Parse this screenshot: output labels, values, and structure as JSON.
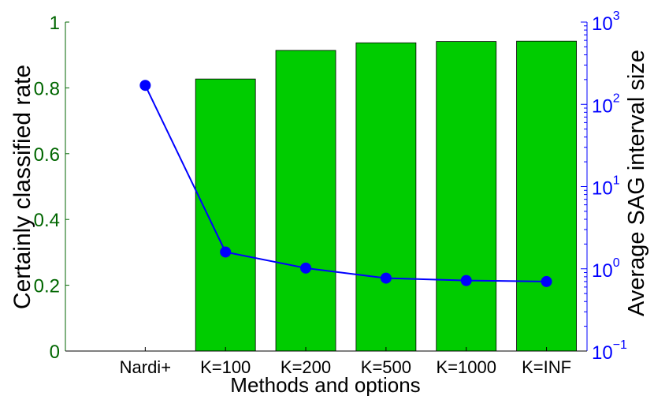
{
  "chart_data": {
    "type": "bar",
    "xlabel": "Methods and options",
    "ylabel": "Certainly classified rate",
    "y2label": "Average SAG interval size",
    "categories": [
      "Nardi+",
      "K=100",
      "K=200",
      "K=500",
      "K=1000",
      "K=INF"
    ],
    "ylim": [
      0,
      1
    ],
    "yticks": [
      "0",
      "0.2",
      "0.4",
      "0.6",
      "0.8",
      "1"
    ],
    "y2scale": "log",
    "y2ticks": [
      {
        "base": "10",
        "exp": "−1"
      },
      {
        "base": "10",
        "exp": "0"
      },
      {
        "base": "10",
        "exp": "1"
      },
      {
        "base": "10",
        "exp": "2"
      },
      {
        "base": "10",
        "exp": "3"
      }
    ],
    "series": [
      {
        "type": "bar",
        "axis": "left",
        "values": [
          null,
          0.827,
          0.914,
          0.937,
          0.941,
          0.942
        ]
      },
      {
        "type": "line",
        "axis": "right",
        "marker": "circle",
        "values": [
          170,
          1.6,
          1.02,
          0.77,
          0.72,
          0.7
        ]
      }
    ],
    "grid": false,
    "colors": {
      "bar": "#00cc00",
      "left_axis": "#006600",
      "right_axis": "#0000ff",
      "line": "#0000ff"
    }
  }
}
